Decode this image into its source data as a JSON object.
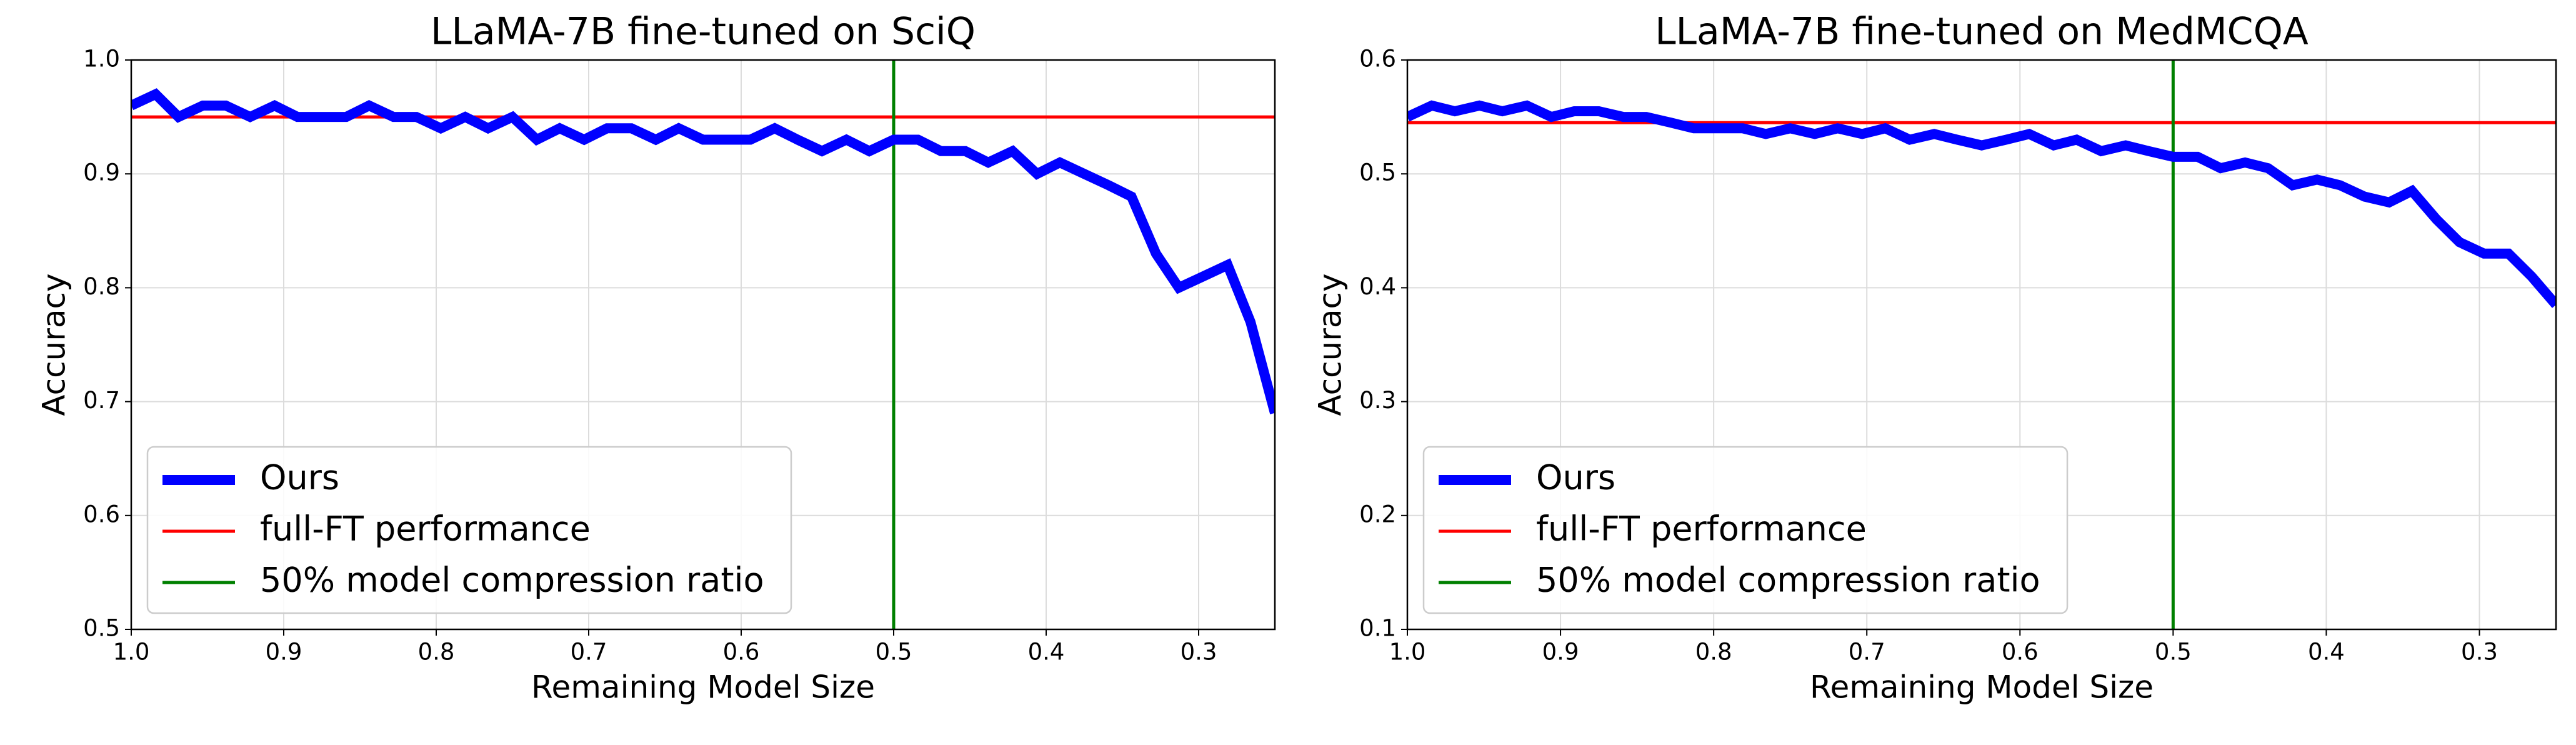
{
  "chart_data": [
    {
      "type": "line",
      "title": "LLaMA-7B fine-tuned on SciQ",
      "x_label": "Remaining Model Size",
      "y_label": "Accuracy",
      "x": [
        1.0,
        0.984,
        0.969,
        0.953,
        0.938,
        0.922,
        0.906,
        0.891,
        0.875,
        0.859,
        0.844,
        0.828,
        0.813,
        0.797,
        0.781,
        0.766,
        0.75,
        0.734,
        0.719,
        0.703,
        0.688,
        0.672,
        0.656,
        0.641,
        0.625,
        0.609,
        0.594,
        0.578,
        0.563,
        0.547,
        0.531,
        0.516,
        0.5,
        0.484,
        0.469,
        0.453,
        0.438,
        0.422,
        0.406,
        0.391,
        0.375,
        0.359,
        0.344,
        0.328,
        0.313,
        0.297,
        0.281,
        0.266,
        0.25
      ],
      "series": [
        {
          "name": "Ours",
          "color": "#0000ff",
          "values": [
            0.96,
            0.97,
            0.95,
            0.96,
            0.96,
            0.95,
            0.96,
            0.95,
            0.95,
            0.95,
            0.96,
            0.95,
            0.95,
            0.94,
            0.95,
            0.94,
            0.95,
            0.93,
            0.94,
            0.93,
            0.94,
            0.94,
            0.93,
            0.94,
            0.93,
            0.93,
            0.93,
            0.94,
            0.93,
            0.92,
            0.93,
            0.92,
            0.93,
            0.93,
            0.92,
            0.92,
            0.91,
            0.92,
            0.9,
            0.91,
            0.9,
            0.89,
            0.88,
            0.83,
            0.8,
            0.81,
            0.82,
            0.77,
            0.69
          ]
        }
      ],
      "reference_lines": [
        {
          "name": "full-FT performance",
          "orientation": "horizontal",
          "value": 0.95,
          "color": "#ff0000"
        },
        {
          "name": "50% model compression ratio",
          "orientation": "vertical",
          "value": 0.5,
          "color": "#008000"
        }
      ],
      "xlim": [
        1.0,
        0.25
      ],
      "xticks": [
        {
          "value": 1,
          "label": "1.0"
        },
        0.9,
        0.8,
        0.7,
        0.6,
        0.5,
        0.4,
        0.3
      ],
      "ylim": [
        0.5,
        1.0
      ],
      "yticks": [
        0.5,
        0.6,
        0.7,
        0.8,
        0.9,
        {
          "value": 1,
          "label": "1.0"
        }
      ],
      "grid": true,
      "legend": "lower left"
    },
    {
      "type": "line",
      "title": "LLaMA-7B fine-tuned on MedMCQA",
      "x_label": "Remaining Model Size",
      "y_label": "Accuracy",
      "x": [
        1.0,
        0.984,
        0.969,
        0.953,
        0.938,
        0.922,
        0.906,
        0.891,
        0.875,
        0.859,
        0.844,
        0.828,
        0.813,
        0.797,
        0.781,
        0.766,
        0.75,
        0.734,
        0.719,
        0.703,
        0.688,
        0.672,
        0.656,
        0.641,
        0.625,
        0.609,
        0.594,
        0.578,
        0.563,
        0.547,
        0.531,
        0.516,
        0.5,
        0.484,
        0.469,
        0.453,
        0.438,
        0.422,
        0.406,
        0.391,
        0.375,
        0.359,
        0.344,
        0.328,
        0.313,
        0.297,
        0.281,
        0.266,
        0.25
      ],
      "series": [
        {
          "name": "Ours",
          "color": "#0000ff",
          "values": [
            0.55,
            0.56,
            0.555,
            0.56,
            0.555,
            0.56,
            0.55,
            0.555,
            0.555,
            0.55,
            0.55,
            0.545,
            0.54,
            0.54,
            0.54,
            0.535,
            0.54,
            0.535,
            0.54,
            0.535,
            0.54,
            0.53,
            0.535,
            0.53,
            0.525,
            0.53,
            0.535,
            0.525,
            0.53,
            0.52,
            0.525,
            0.52,
            0.515,
            0.515,
            0.505,
            0.51,
            0.505,
            0.49,
            0.495,
            0.49,
            0.48,
            0.475,
            0.485,
            0.46,
            0.44,
            0.43,
            0.43,
            0.41,
            0.385
          ]
        }
      ],
      "reference_lines": [
        {
          "name": "full-FT performance",
          "orientation": "horizontal",
          "value": 0.545,
          "color": "#ff0000"
        },
        {
          "name": "50% model compression ratio",
          "orientation": "vertical",
          "value": 0.5,
          "color": "#008000"
        }
      ],
      "xlim": [
        1.0,
        0.25
      ],
      "xticks": [
        {
          "value": 1,
          "label": "1.0"
        },
        0.9,
        0.8,
        0.7,
        0.6,
        0.5,
        0.4,
        0.3
      ],
      "ylim": [
        0.1,
        0.6
      ],
      "yticks": [
        0.1,
        0.2,
        0.3,
        0.4,
        0.5,
        0.6
      ],
      "grid": true,
      "legend": "lower left"
    }
  ]
}
